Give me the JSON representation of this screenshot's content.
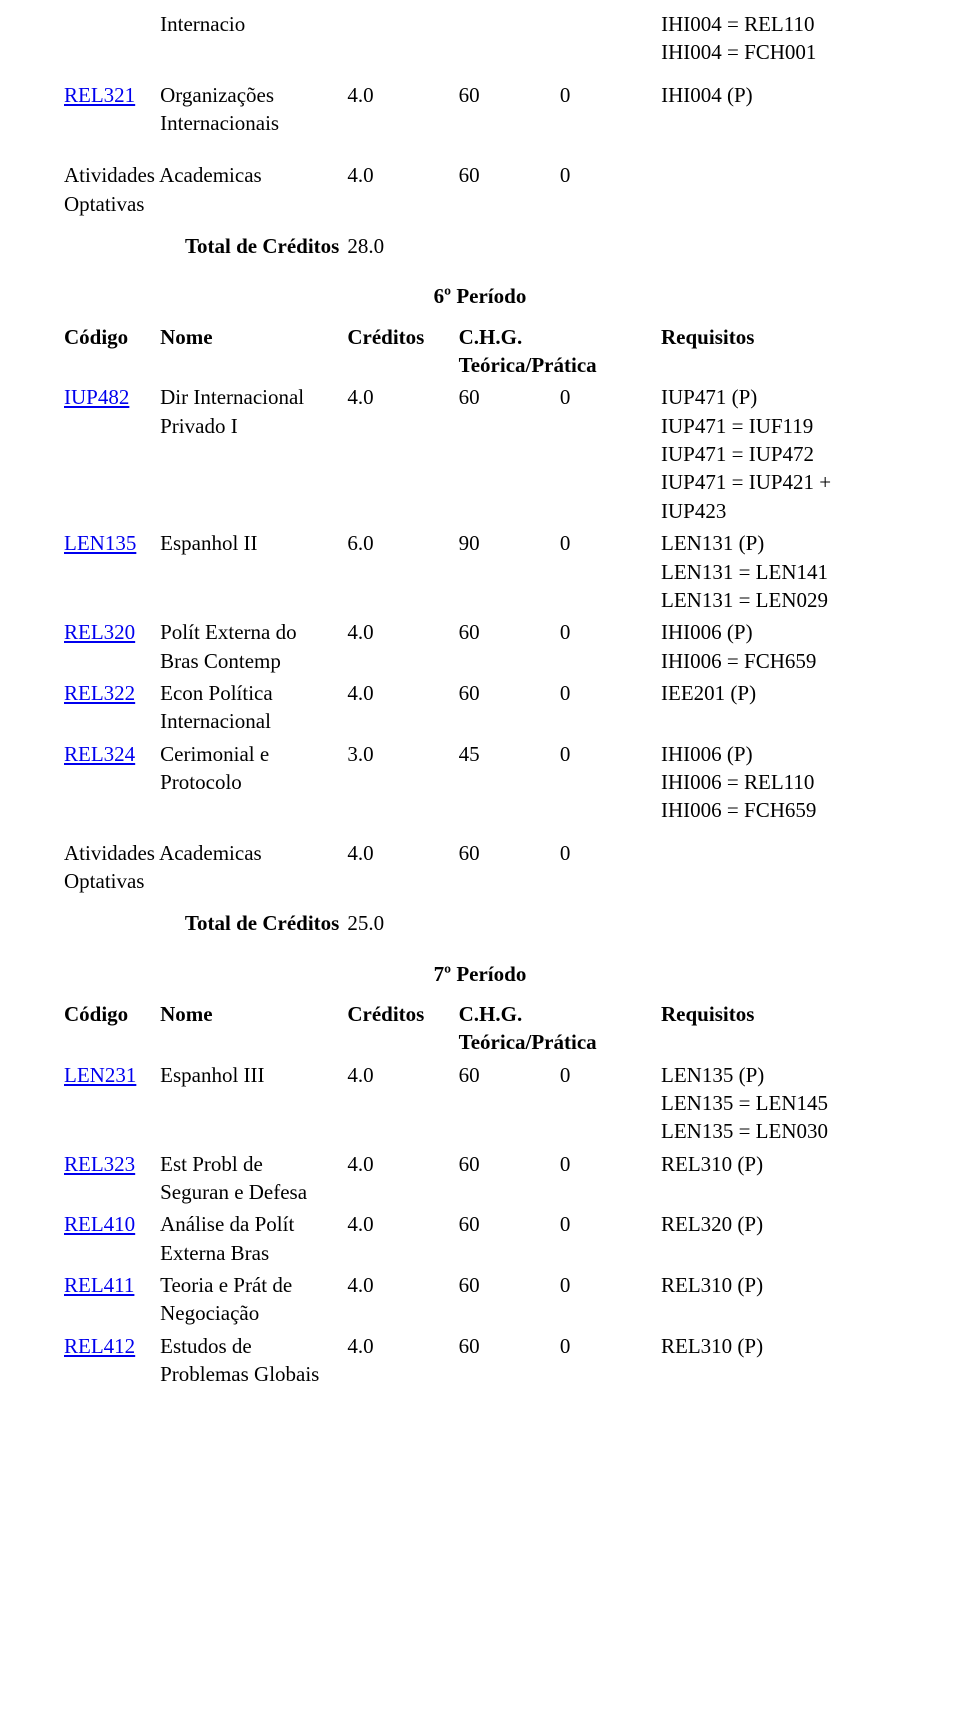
{
  "header_labels": {
    "codigo": "Código",
    "nome": "Nome",
    "creditos": "Créditos",
    "chg_line1": "C.H.G.",
    "chg_line2": "Teórica/Prática",
    "requisitos": "Requisitos",
    "total_creditos": "Total de Créditos"
  },
  "top_block": {
    "internacio": "Internacio",
    "internacio_req_line1": "IHI004 = REL110",
    "internacio_req_line2": "IHI004 = FCH001",
    "rel321": {
      "code": "REL321",
      "name_line1": "Organizações",
      "name_line2": "Internacionais",
      "cred": "4.0",
      "teor": "60",
      "prat": "0",
      "req": "IHI004 (P)"
    },
    "ativ_line1": "Atividades Academicas",
    "ativ_line2": "Optativas",
    "ativ_cred": "4.0",
    "ativ_teor": "60",
    "ativ_prat": "0",
    "total_value": "28.0"
  },
  "period6": {
    "title": "6º Período",
    "rows": [
      {
        "code": "IUP482",
        "is_link": true,
        "name_lines": [
          "Dir Internacional",
          "Privado I"
        ],
        "cred": "4.0",
        "teor": "60",
        "prat": "0",
        "req_lines": [
          "IUP471 (P)",
          "IUP471 = IUF119",
          "IUP471 = IUP472",
          "IUP471 = IUP421 +",
          "IUP423"
        ]
      },
      {
        "code": "LEN135",
        "is_link": true,
        "name_lines": [
          "Espanhol II"
        ],
        "cred": "6.0",
        "teor": "90",
        "prat": "0",
        "req_lines": [
          "LEN131 (P)",
          "LEN131 = LEN141",
          "LEN131 = LEN029"
        ]
      },
      {
        "code": "REL320",
        "is_link": true,
        "name_lines": [
          "Polít Externa do",
          "Bras Contemp"
        ],
        "cred": "4.0",
        "teor": "60",
        "prat": "0",
        "req_lines": [
          "IHI006 (P)",
          "IHI006 = FCH659"
        ]
      },
      {
        "code": "REL322",
        "is_link": true,
        "name_lines": [
          "Econ Política",
          "Internacional"
        ],
        "cred": "4.0",
        "teor": "60",
        "prat": "0",
        "req_lines": [
          "IEE201 (P)"
        ]
      },
      {
        "code": "REL324",
        "is_link": true,
        "name_lines": [
          "Cerimonial e",
          "Protocolo"
        ],
        "cred": "3.0",
        "teor": "45",
        "prat": "0",
        "req_lines": [
          "IHI006 (P)",
          "IHI006 = REL110",
          "IHI006 = FCH659"
        ]
      }
    ],
    "ativ_line1": "Atividades Academicas",
    "ativ_line2": "Optativas",
    "ativ_cred": "4.0",
    "ativ_teor": "60",
    "ativ_prat": "0",
    "total_value": "25.0"
  },
  "period7": {
    "title": "7º Período",
    "rows": [
      {
        "code": "LEN231",
        "is_link": true,
        "name_lines": [
          "Espanhol III"
        ],
        "cred": "4.0",
        "teor": "60",
        "prat": "0",
        "req_lines": [
          "LEN135 (P)",
          "LEN135 = LEN145",
          "LEN135 = LEN030"
        ]
      },
      {
        "code": "REL323",
        "is_link": true,
        "name_lines": [
          "Est Probl de",
          "Seguran e Defesa"
        ],
        "cred": "4.0",
        "teor": "60",
        "prat": "0",
        "req_lines": [
          "REL310 (P)"
        ]
      },
      {
        "code": "REL410",
        "is_link": true,
        "name_lines": [
          "Análise da Polít",
          "Externa Bras"
        ],
        "cred": "4.0",
        "teor": "60",
        "prat": "0",
        "req_lines": [
          "REL320 (P)"
        ]
      },
      {
        "code": "REL411",
        "is_link": true,
        "name_lines": [
          "Teoria e Prát de",
          "Negociação"
        ],
        "cred": "4.0",
        "teor": "60",
        "prat": "0",
        "req_lines": [
          "REL310 (P)"
        ]
      },
      {
        "code": "REL412",
        "is_link": true,
        "name_lines": [
          "Estudos de",
          "Problemas Globais"
        ],
        "cred": "4.0",
        "teor": "60",
        "prat": "0",
        "req_lines": [
          "REL310 (P)"
        ]
      }
    ]
  }
}
